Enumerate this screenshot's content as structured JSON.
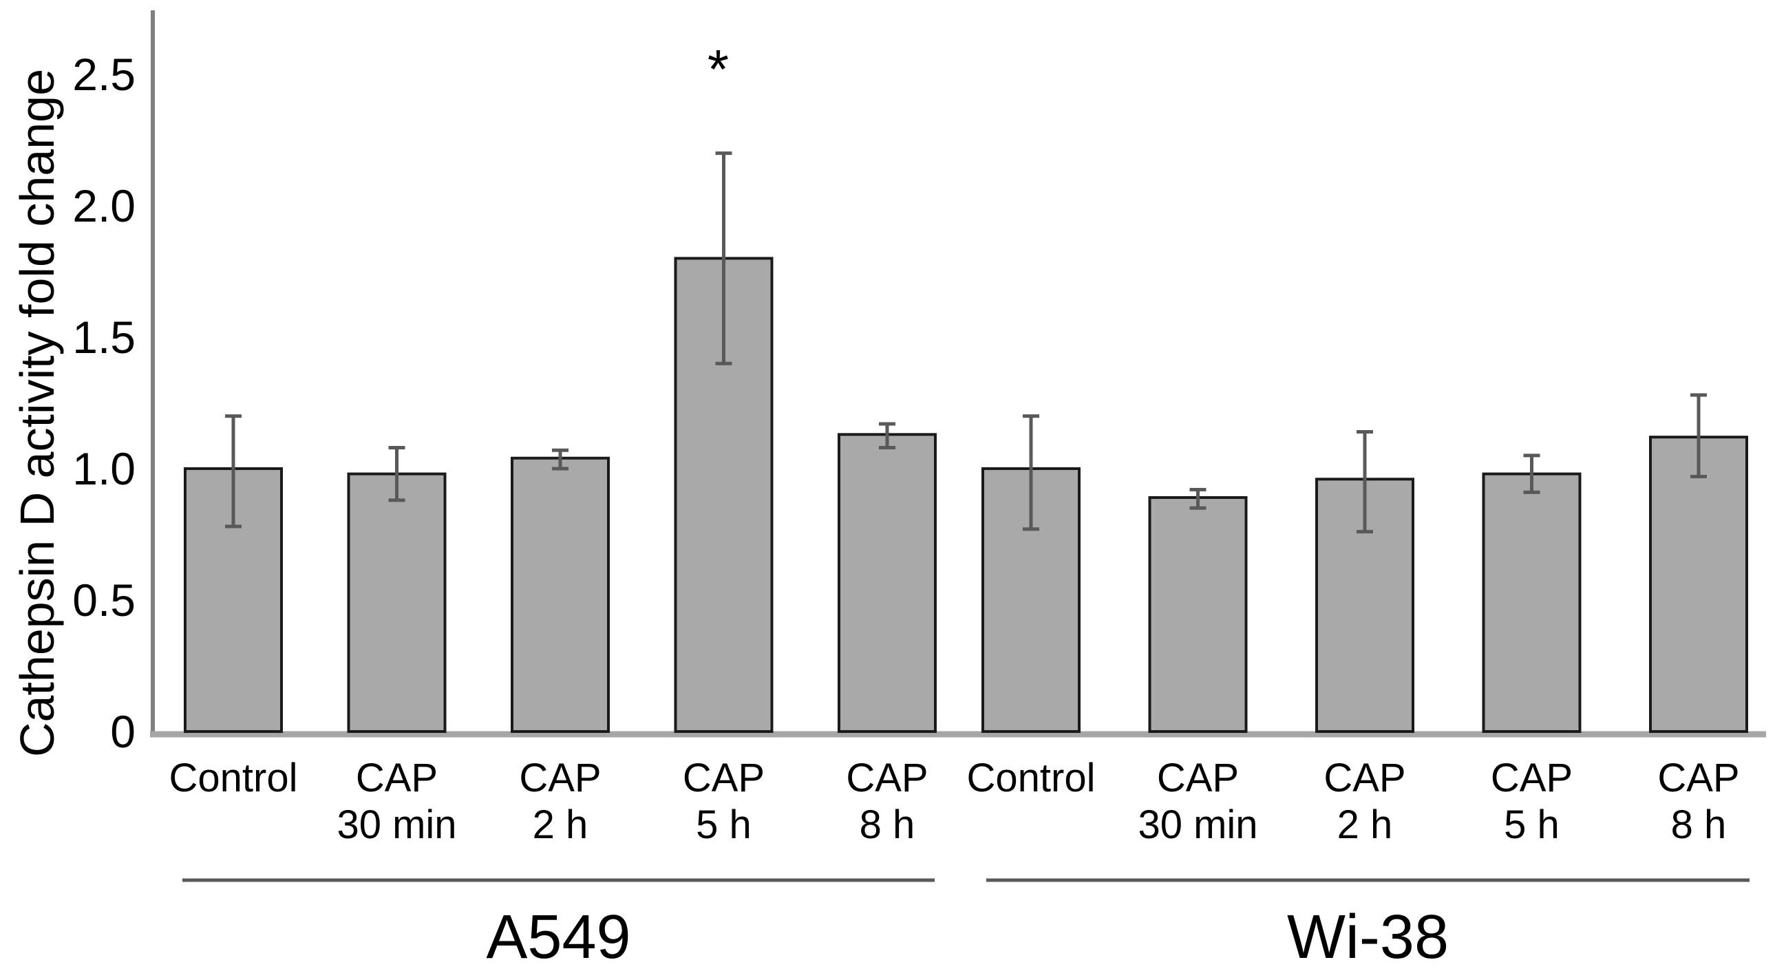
{
  "figure": {
    "background": "#ffffff",
    "description": "Bar chart of Cathepsin D activity fold change in A549 and Wi-38 cells after CAP treatment"
  },
  "chart_data": {
    "type": "bar",
    "title": "",
    "xlabel": "",
    "ylabel": "Cathepsin D activity fold change",
    "ylim": [
      0,
      2.5
    ],
    "grid": false,
    "legend": false,
    "yticks": [
      {
        "value": 0,
        "label": "0"
      },
      {
        "value": 0.5,
        "label": "0.5"
      },
      {
        "value": 1.0,
        "label": "1.0"
      },
      {
        "value": 1.5,
        "label": "1.5"
      },
      {
        "value": 2.0,
        "label": "2.0"
      },
      {
        "value": 2.5,
        "label": "2.5"
      }
    ],
    "groups": [
      {
        "name": "A549",
        "categories": [
          [
            "Control"
          ],
          [
            "CAP",
            "30 min"
          ],
          [
            "CAP",
            "2 h"
          ],
          [
            "CAP",
            "5 h"
          ],
          [
            "CAP",
            "8 h"
          ]
        ],
        "values": [
          1.0,
          0.98,
          1.04,
          1.8,
          1.13
        ],
        "error_low": [
          0.78,
          0.88,
          1.0,
          1.4,
          1.08
        ],
        "error_high": [
          1.2,
          1.08,
          1.07,
          2.2,
          1.17
        ],
        "significance": [
          "",
          "",
          "",
          "*",
          ""
        ]
      },
      {
        "name": "Wi-38",
        "categories": [
          [
            "Control"
          ],
          [
            "CAP",
            "30 min"
          ],
          [
            "CAP",
            "2 h"
          ],
          [
            "CAP",
            "5 h"
          ],
          [
            "CAP",
            "8 h"
          ]
        ],
        "values": [
          1.0,
          0.89,
          0.96,
          0.98,
          1.12
        ],
        "error_low": [
          0.77,
          0.85,
          0.76,
          0.91,
          0.97
        ],
        "error_high": [
          1.2,
          0.92,
          1.14,
          1.05,
          1.28
        ],
        "significance": [
          "",
          "",
          "",
          "",
          ""
        ]
      }
    ],
    "colors": {
      "bar_fill": "#a9a9a9",
      "bar_edge": "#1a1a1a",
      "error_bar": "#595959",
      "y_axis": "#7f7f7f",
      "x_baseline": "#a6a6a6",
      "text": "#000000"
    }
  }
}
